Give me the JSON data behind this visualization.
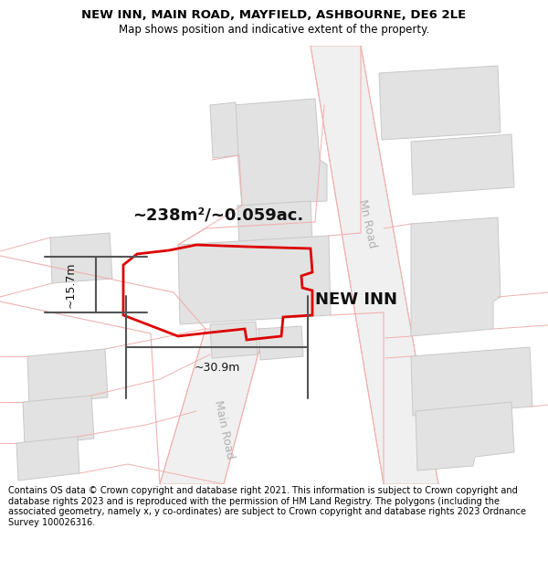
{
  "title_line1": "NEW INN, MAIN ROAD, MAYFIELD, ASHBOURNE, DE6 2LE",
  "title_line2": "Map shows position and indicative extent of the property.",
  "footer": "Contains OS data © Crown copyright and database right 2021. This information is subject to Crown copyright and database rights 2023 and is reproduced with the permission of HM Land Registry. The polygons (including the associated geometry, namely x, y co-ordinates) are subject to Crown copyright and database rights 2023 Ordnance Survey 100026316.",
  "area_label": "~238m²/~0.059ac.",
  "width_label": "~30.9m",
  "height_label": "~15.7m",
  "property_label": "NEW INN",
  "road_label_upper": "Mn Road",
  "road_label_lower": "Main Road",
  "bg_color": "#ffffff",
  "map_bg": "#f7f7f7",
  "building_color": "#e2e2e2",
  "building_edge": "#c8c8c8",
  "road_fill": "#f0f0f0",
  "road_outline": "#f0b0b0",
  "highlight_color": "#dd0000",
  "dim_line_color": "#555555",
  "road_label_color": "#b0b0b0"
}
